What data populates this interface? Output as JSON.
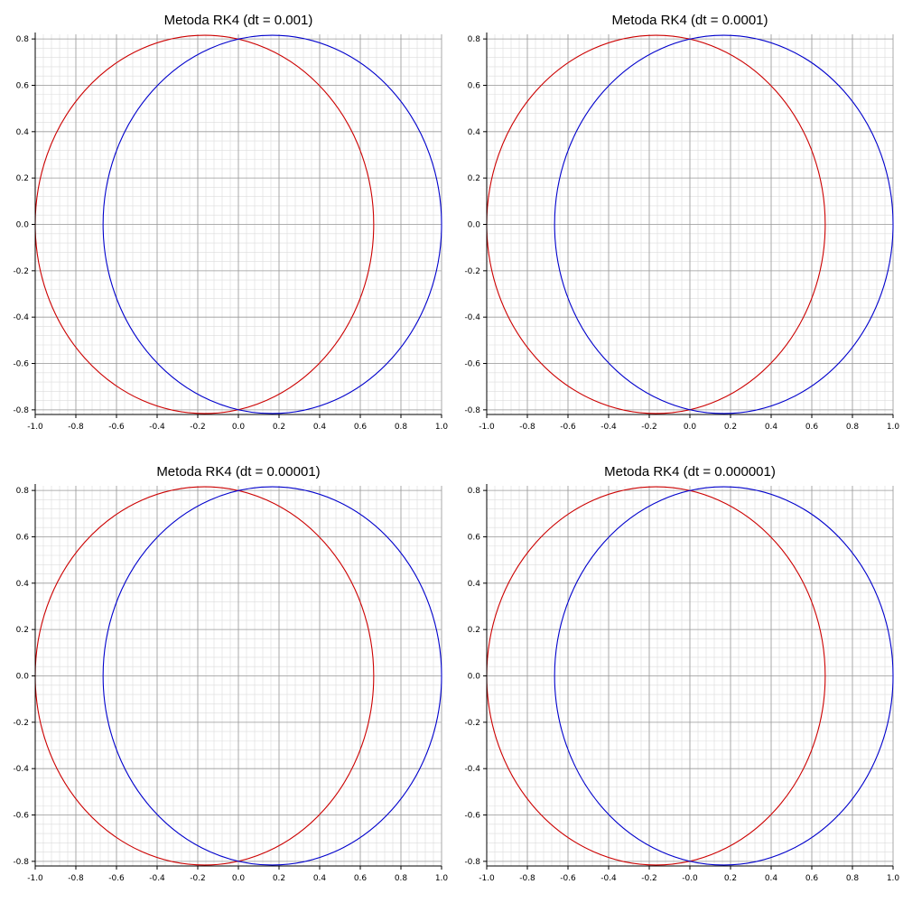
{
  "chart_data": [
    {
      "type": "line",
      "title": "Metoda RK4 (dt = 0.001)",
      "xlabel": "",
      "ylabel": "",
      "xlim": [
        -1.0,
        1.0
      ],
      "ylim": [
        -0.82,
        0.82
      ],
      "x_ticks": [
        "-1.0",
        "-0.8",
        "-0.6",
        "-0.4",
        "-0.2",
        "0.0",
        "0.2",
        "0.4",
        "0.6",
        "0.8",
        "1.0"
      ],
      "y_ticks": [
        "0.8",
        "0.6",
        "0.4",
        "0.2",
        "0.0",
        "-0.2",
        "-0.4",
        "-0.6",
        "-0.8"
      ],
      "grid": true,
      "series": [
        {
          "color": "#cc0000",
          "shape": "ellipse",
          "x": [
            -1.0,
            0.666
          ],
          "y": [
            -0.816,
            0.816
          ]
        },
        {
          "color": "#0000cc",
          "shape": "ellipse",
          "x": [
            -0.666,
            1.0
          ],
          "y": [
            -0.816,
            0.816
          ]
        }
      ]
    },
    {
      "type": "line",
      "title": "Metoda RK4 (dt = 0.0001)",
      "xlabel": "",
      "ylabel": "",
      "xlim": [
        -1.0,
        1.0
      ],
      "ylim": [
        -0.82,
        0.82
      ],
      "x_ticks": [
        "-1.0",
        "-0.8",
        "-0.6",
        "-0.4",
        "-0.2",
        "0.0",
        "0.2",
        "0.4",
        "0.6",
        "0.8",
        "1.0"
      ],
      "y_ticks": [
        "0.8",
        "0.6",
        "0.4",
        "0.2",
        "0.0",
        "-0.2",
        "-0.4",
        "-0.6",
        "-0.8"
      ],
      "grid": true,
      "series": [
        {
          "color": "#cc0000",
          "shape": "ellipse",
          "x": [
            -1.0,
            0.666
          ],
          "y": [
            -0.816,
            0.816
          ]
        },
        {
          "color": "#0000cc",
          "shape": "ellipse",
          "x": [
            -0.666,
            1.0
          ],
          "y": [
            -0.816,
            0.816
          ]
        }
      ]
    },
    {
      "type": "line",
      "title": "Metoda RK4 (dt = 0.00001)",
      "xlabel": "",
      "ylabel": "",
      "xlim": [
        -1.0,
        1.0
      ],
      "ylim": [
        -0.82,
        0.82
      ],
      "x_ticks": [
        "-1.0",
        "-0.8",
        "-0.6",
        "-0.4",
        "-0.2",
        "0.0",
        "0.2",
        "0.4",
        "0.6",
        "0.8",
        "1.0"
      ],
      "y_ticks": [
        "0.8",
        "0.6",
        "0.4",
        "0.2",
        "0.0",
        "-0.2",
        "-0.4",
        "-0.6",
        "-0.8"
      ],
      "grid": true,
      "series": [
        {
          "color": "#cc0000",
          "shape": "ellipse",
          "x": [
            -1.0,
            0.666
          ],
          "y": [
            -0.816,
            0.816
          ]
        },
        {
          "color": "#0000cc",
          "shape": "ellipse",
          "x": [
            -0.666,
            1.0
          ],
          "y": [
            -0.816,
            0.816
          ]
        }
      ]
    },
    {
      "type": "line",
      "title": "Metoda RK4 (dt = 0.000001)",
      "xlabel": "",
      "ylabel": "",
      "xlim": [
        -1.0,
        1.0
      ],
      "ylim": [
        -0.82,
        0.82
      ],
      "x_ticks": [
        "-1.0",
        "-0.8",
        "-0.6",
        "-0.4",
        "-0.2",
        "-0.0",
        "0.2",
        "0.4",
        "0.6",
        "0.8",
        "1.0"
      ],
      "y_ticks": [
        "0.8",
        "0.6",
        "0.4",
        "0.2",
        "0.0",
        "-0.2",
        "-0.4",
        "-0.6",
        "-0.8"
      ],
      "grid": true,
      "series": [
        {
          "color": "#cc0000",
          "shape": "ellipse",
          "x": [
            -1.0,
            0.666
          ],
          "y": [
            -0.816,
            0.816
          ]
        },
        {
          "color": "#0000cc",
          "shape": "ellipse",
          "x": [
            -0.666,
            1.0
          ],
          "y": [
            -0.816,
            0.816
          ]
        }
      ]
    }
  ]
}
